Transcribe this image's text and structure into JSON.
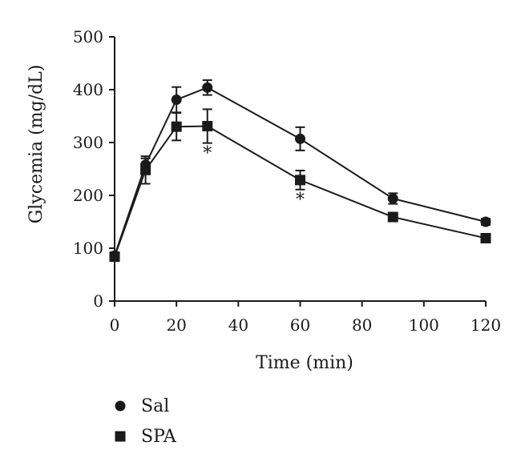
{
  "chart_data": {
    "type": "line",
    "title": "",
    "xlabel": "Time (min)",
    "ylabel": "Glycemia (mg/dL)",
    "xlim": [
      0,
      120
    ],
    "ylim": [
      0,
      500
    ],
    "x_ticks": [
      0,
      20,
      40,
      60,
      80,
      100,
      120
    ],
    "y_ticks": [
      0,
      100,
      200,
      300,
      400,
      500
    ],
    "grid": false,
    "legend_position": "bottom-left",
    "x": [
      0,
      10,
      20,
      30,
      60,
      90,
      120
    ],
    "series": [
      {
        "name": "Sal",
        "marker": "circle",
        "color": "#1a1a1a",
        "values": [
          86,
          258,
          381,
          404,
          307,
          194,
          150
        ],
        "errors": [
          6,
          12,
          24,
          14,
          22,
          10,
          6
        ]
      },
      {
        "name": "SPA",
        "marker": "square",
        "color": "#1a1a1a",
        "values": [
          84,
          248,
          330,
          331,
          229,
          159,
          119
        ],
        "errors": [
          6,
          26,
          26,
          32,
          18,
          8,
          6
        ]
      }
    ],
    "annotations": [
      {
        "text": "*",
        "x": 30,
        "y": 331,
        "series": "SPA"
      },
      {
        "text": "*",
        "x": 60,
        "y": 229,
        "series": "SPA"
      }
    ]
  }
}
